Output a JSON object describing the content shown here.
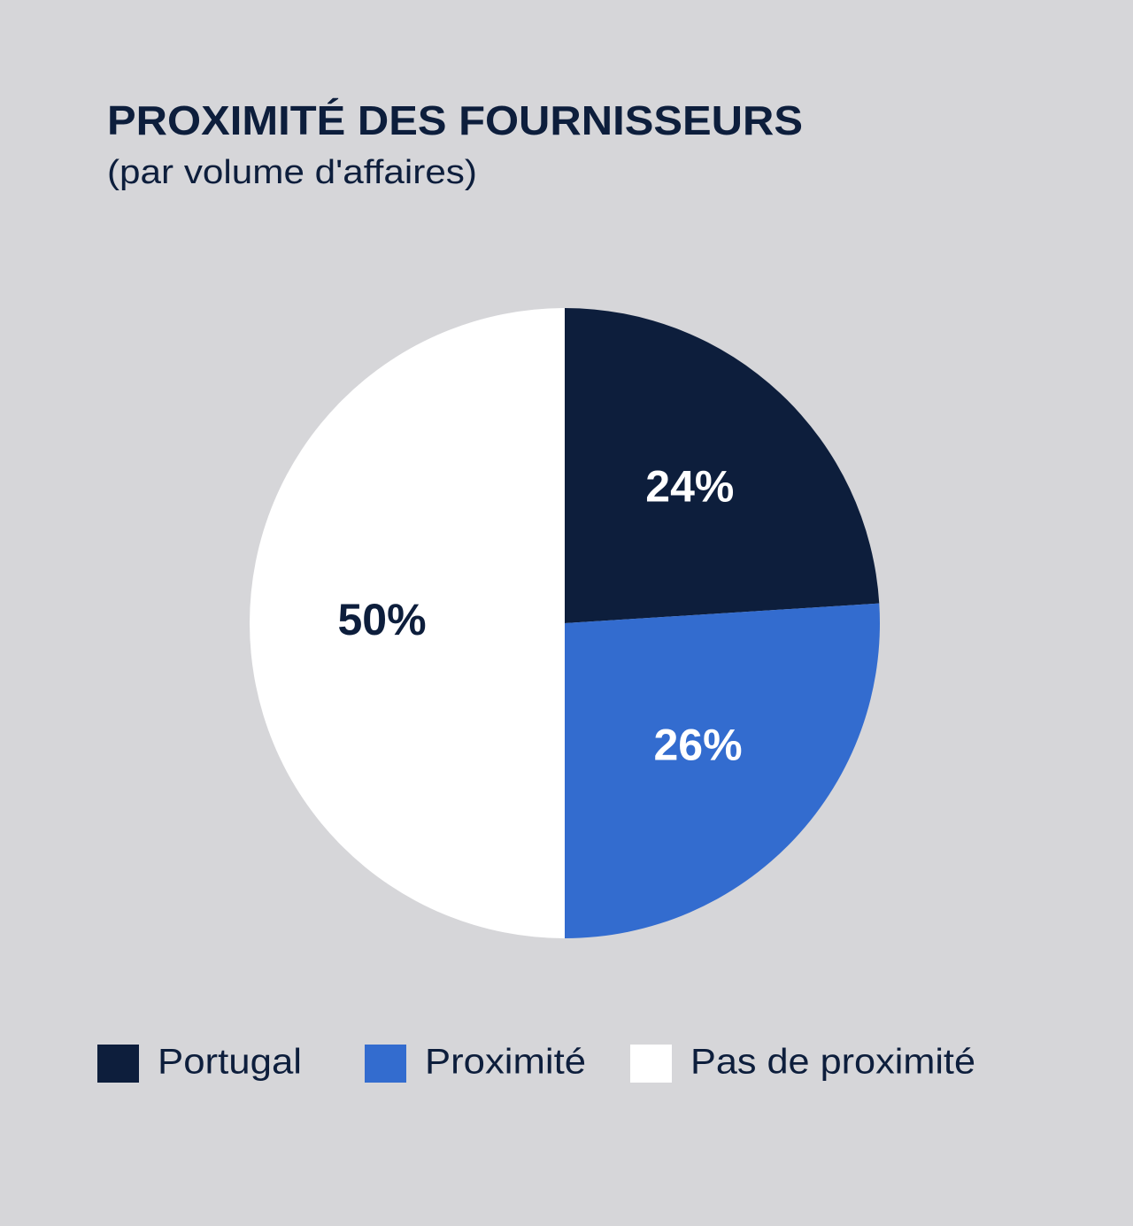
{
  "chart_data": {
    "type": "pie",
    "title": "PROXIMITÉ DES FOURNISSEURS",
    "subtitle": "(par volume d'affaires)",
    "categories": [
      "Portugal",
      "Proximité",
      "Pas de proximité"
    ],
    "values": [
      24,
      26,
      50
    ],
    "value_labels": [
      "24%",
      "26%",
      "50%"
    ],
    "colors": [
      "#0d1e3c",
      "#336ccf",
      "#ffffff"
    ],
    "legend": "bottom"
  }
}
